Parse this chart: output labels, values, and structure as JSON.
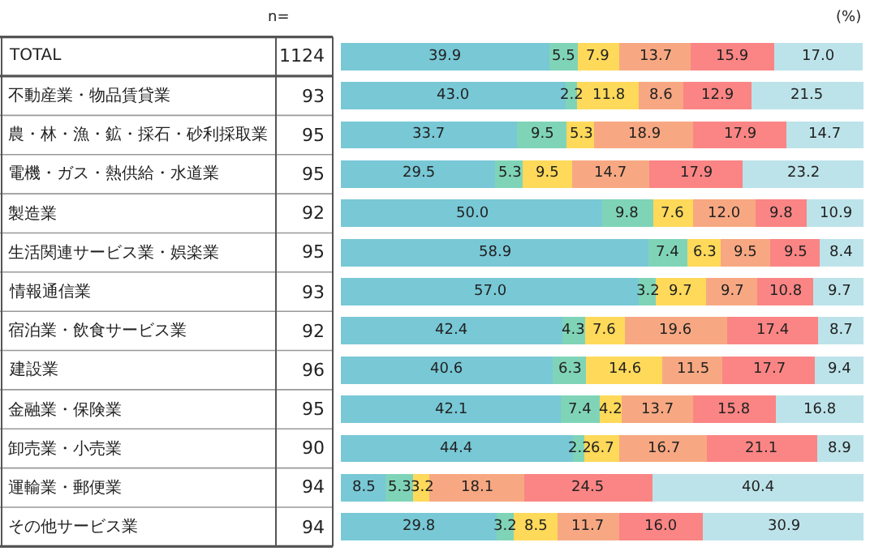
{
  "chart_data": {
    "type": "bar",
    "orientation": "horizontal",
    "stacked": true,
    "tick_labels": "y",
    "categories": [
      "TOTAL",
      "不動産業・物品賃貸業",
      "農・林・漁・鉱・採石・砂利採取業",
      "電機・ガス・熱供給・水道業",
      "製造業",
      "生活関連サービス業・娯楽業",
      "情報通信業",
      "宿泊業・飲食サービス業",
      "建設業",
      "金融業・保険業",
      "卸売業・小売業",
      "運輸業・郵便業",
      "その他サービス業"
    ],
    "xlim": [
      0,
      100
    ],
    "series": [
      {
        "color": "#78c8d6",
        "values": [
          39.9,
          43.0,
          33.7,
          29.5,
          50.0,
          58.9,
          57.0,
          42.4,
          40.6,
          42.1,
          44.4,
          8.5,
          29.8
        ],
        "value_labels": [
          "39.9",
          "43.0",
          "33.7",
          "29.5",
          "50.0",
          "58.9",
          "57.0",
          "42.4",
          "40.6",
          "42.1",
          "44.4",
          "8.5",
          "29.8"
        ]
      },
      {
        "color": "#7fd4b8",
        "values": [
          5.5,
          2.2,
          9.5,
          5.3,
          9.8,
          7.4,
          3.2,
          4.3,
          6.3,
          7.4,
          2.2,
          5.3,
          3.2
        ],
        "value_labels": [
          "5.5",
          "2.2",
          "9.5",
          "5.3",
          "9.8",
          "7.4",
          "3.2",
          "4.3",
          "6.3",
          "7.4",
          "2.2",
          "5.3",
          "3.2"
        ]
      },
      {
        "color": "#ffd95a",
        "values": [
          7.9,
          11.8,
          5.3,
          9.5,
          7.6,
          6.3,
          9.7,
          7.6,
          14.6,
          4.2,
          6.7,
          3.2,
          8.5
        ],
        "value_labels": [
          "7.9",
          "11.8",
          "5.3",
          "9.5",
          "7.6",
          "6.3",
          "9.7",
          "7.6",
          "14.6",
          "4.2",
          "6.7",
          "3.2",
          "8.5"
        ]
      },
      {
        "color": "#f7a882",
        "values": [
          13.7,
          8.6,
          18.9,
          14.7,
          12.0,
          9.5,
          9.7,
          19.6,
          11.5,
          13.7,
          16.7,
          18.1,
          11.7
        ],
        "value_labels": [
          "13.7",
          "8.6",
          "18.9",
          "14.7",
          "12.0",
          "9.5",
          "9.7",
          "19.6",
          "11.5",
          "13.7",
          "16.7",
          "18.1",
          "11.7"
        ]
      },
      {
        "color": "#fa8584",
        "values": [
          15.9,
          12.9,
          17.9,
          17.9,
          9.8,
          9.5,
          10.8,
          17.4,
          17.7,
          15.8,
          21.1,
          24.5,
          16.0
        ],
        "value_labels": [
          "15.9",
          "12.9",
          "17.9",
          "17.9",
          "9.8",
          "9.5",
          "10.8",
          "17.4",
          "17.7",
          "15.8",
          "21.1",
          "24.5",
          "16.0"
        ]
      },
      {
        "color": "#bde3ea",
        "values": [
          17.0,
          21.5,
          14.7,
          23.2,
          10.9,
          8.4,
          9.7,
          8.7,
          9.4,
          16.8,
          8.9,
          40.4,
          30.9
        ],
        "value_labels": [
          "17.0",
          "21.5",
          "14.7",
          "23.2",
          "10.9",
          "8.4",
          "9.7",
          "8.7",
          "9.4",
          "16.8",
          "8.9",
          "40.4",
          "30.9"
        ]
      }
    ],
    "annotations": [
      "n=",
      "(%)",
      "1124",
      "93",
      "95",
      "95",
      "92",
      "95",
      "93",
      "92",
      "96",
      "95",
      "90",
      "94",
      "94"
    ]
  }
}
